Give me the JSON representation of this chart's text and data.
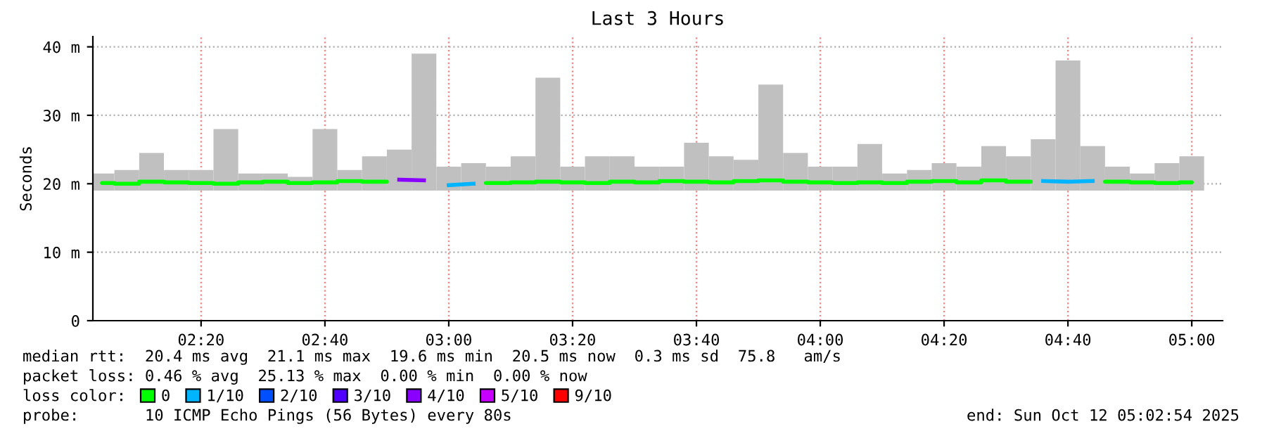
{
  "chart_data": {
    "type": "bar",
    "title": "Last 3 Hours",
    "ylabel": "Seconds",
    "x": [
      2.0667,
      2.1333,
      2.2,
      2.2667,
      2.3333,
      2.4,
      2.4667,
      2.5333,
      2.6,
      2.6667,
      2.7333,
      2.8,
      2.8667,
      2.9333,
      3.0,
      3.0667,
      3.1333,
      3.2,
      3.2667,
      3.3333,
      3.4,
      3.4667,
      3.5333,
      3.6,
      3.6667,
      3.7333,
      3.8,
      3.8667,
      3.9333,
      4.0,
      4.0667,
      4.1333,
      4.2,
      4.2667,
      4.3333,
      4.4,
      4.4667,
      4.5333,
      4.6,
      4.6667,
      4.7333,
      4.8,
      4.8667,
      4.9333,
      5.0
    ],
    "series": [
      {
        "color": "#c0c0c0",
        "base": [
          19,
          19,
          19,
          19,
          19,
          19,
          19,
          19,
          19,
          19,
          19,
          19,
          19,
          19,
          19,
          19,
          19,
          19,
          19,
          19,
          19,
          19,
          19,
          19,
          19,
          19,
          19,
          19,
          19,
          19,
          19,
          19,
          19,
          19,
          19,
          19,
          19,
          19,
          19,
          19,
          19,
          19,
          19,
          19,
          19
        ],
        "values": [
          2.5,
          3,
          5.5,
          3,
          3,
          9,
          2.5,
          2.5,
          2,
          9,
          3,
          5,
          6,
          20,
          3.5,
          4,
          3.5,
          5,
          16.5,
          3.5,
          5,
          5,
          3.5,
          3.5,
          7,
          5,
          4.5,
          15.5,
          5.5,
          3.5,
          3.5,
          6.8,
          2.5,
          3,
          4,
          3.5,
          6.5,
          5,
          7.5,
          19,
          6.5,
          3.5,
          2.5,
          4,
          5
        ]
      },
      {
        "type": "step",
        "name": "0",
        "color": "#00ff00",
        "values": [
          20.1,
          20.0,
          20.3,
          20.2,
          20.1,
          20.0,
          20.2,
          20.3,
          20.1,
          20.2,
          20.4,
          20.3,
          null,
          null,
          null,
          null,
          20.1,
          20.2,
          20.3,
          20.2,
          20.1,
          20.3,
          20.2,
          20.4,
          20.3,
          20.2,
          20.4,
          20.5,
          20.3,
          20.2,
          20.1,
          20.2,
          20.1,
          20.3,
          20.4,
          20.2,
          20.5,
          20.3,
          null,
          null,
          null,
          20.3,
          20.2,
          20.1,
          20.2
        ]
      },
      {
        "type": "line",
        "name": "1/10",
        "color": "#00b4ff",
        "values": [
          null,
          null,
          null,
          null,
          null,
          null,
          null,
          null,
          null,
          null,
          null,
          null,
          null,
          null,
          19.8,
          20.0,
          null,
          null,
          null,
          null,
          null,
          null,
          null,
          null,
          null,
          null,
          null,
          null,
          null,
          null,
          null,
          null,
          null,
          null,
          null,
          null,
          null,
          null,
          20.4,
          20.3,
          20.4,
          null,
          null,
          null,
          null
        ]
      },
      {
        "type": "step",
        "name": "2/10",
        "color": "#0050ff",
        "values": [
          null,
          null,
          null,
          null,
          null,
          null,
          null,
          null,
          null,
          null,
          null,
          null,
          null,
          null,
          null,
          null,
          null,
          null,
          null,
          null,
          null,
          null,
          null,
          null,
          null,
          null,
          null,
          null,
          null,
          null,
          null,
          null,
          null,
          null,
          null,
          null,
          null,
          null,
          null,
          null,
          null,
          null,
          null,
          null,
          null
        ]
      },
      {
        "type": "step",
        "name": "3/10",
        "color": "#5000ff",
        "values": [
          null,
          null,
          null,
          null,
          null,
          null,
          null,
          null,
          null,
          null,
          null,
          null,
          null,
          null,
          null,
          null,
          null,
          null,
          null,
          null,
          null,
          null,
          null,
          null,
          null,
          null,
          null,
          null,
          null,
          null,
          null,
          null,
          null,
          null,
          null,
          null,
          null,
          null,
          null,
          null,
          null,
          null,
          null,
          null,
          null
        ]
      },
      {
        "type": "line",
        "name": "4/10",
        "color": "#8a00ff",
        "values": [
          null,
          null,
          null,
          null,
          null,
          null,
          null,
          null,
          null,
          null,
          null,
          null,
          20.6,
          20.5,
          null,
          null,
          null,
          null,
          null,
          null,
          null,
          null,
          null,
          null,
          null,
          null,
          null,
          null,
          null,
          null,
          null,
          null,
          null,
          null,
          null,
          null,
          null,
          null,
          null,
          null,
          null,
          null,
          null,
          null,
          null
        ]
      },
      {
        "type": "step",
        "name": "5/10",
        "color": "#c800ff",
        "values": [
          null,
          null,
          null,
          null,
          null,
          null,
          null,
          null,
          null,
          null,
          null,
          null,
          null,
          null,
          null,
          null,
          null,
          null,
          null,
          null,
          null,
          null,
          null,
          null,
          null,
          null,
          null,
          null,
          null,
          null,
          null,
          null,
          null,
          null,
          null,
          null,
          null,
          null,
          null,
          null,
          null,
          null,
          null,
          null,
          null
        ]
      },
      {
        "type": "step",
        "name": "9/10",
        "color": "#ff0000",
        "values": [
          null,
          null,
          null,
          null,
          null,
          null,
          null,
          null,
          null,
          null,
          null,
          null,
          null,
          null,
          null,
          null,
          null,
          null,
          null,
          null,
          null,
          null,
          null,
          null,
          null,
          null,
          null,
          null,
          null,
          null,
          null,
          null,
          null,
          null,
          null,
          null,
          null,
          null,
          null,
          null,
          null,
          null,
          null,
          null,
          null
        ]
      }
    ],
    "xlim": [
      2.042,
      5.083
    ],
    "xticks": [
      {
        "value": 2.3333,
        "label": "02:20"
      },
      {
        "value": 2.6667,
        "label": "02:40"
      },
      {
        "value": 3.0,
        "label": "03:00"
      },
      {
        "value": 3.3333,
        "label": "03:20"
      },
      {
        "value": 3.6667,
        "label": "03:40"
      },
      {
        "value": 4.0,
        "label": "04:00"
      },
      {
        "value": 4.3333,
        "label": "04:20"
      },
      {
        "value": 4.6667,
        "label": "04:40"
      },
      {
        "value": 5.0,
        "label": "05:00"
      }
    ],
    "ylim": [
      0,
      41.5
    ],
    "yticks": [
      0,
      {
        "value": 10,
        "label": "10 m"
      },
      {
        "value": 20,
        "label": "20 m"
      },
      {
        "value": 30,
        "label": "30 m"
      },
      {
        "value": 40,
        "label": "40 m"
      }
    ],
    "grid": true,
    "legend": "bottom",
    "annotations": [
      "median rtt:  20.4 ms avg  21.1 ms max  19.6 ms min  20.5 ms now  0.3 ms sd  75.8   am/s",
      "packet loss: 0.46 % avg  25.13 % max  0.00 % min  0.00 % now",
      "loss color:",
      "probe:       10 ICMP Echo Pings (56 Bytes) every 80s",
      "end: Sun Oct 12 05:02:54 2025"
    ]
  }
}
